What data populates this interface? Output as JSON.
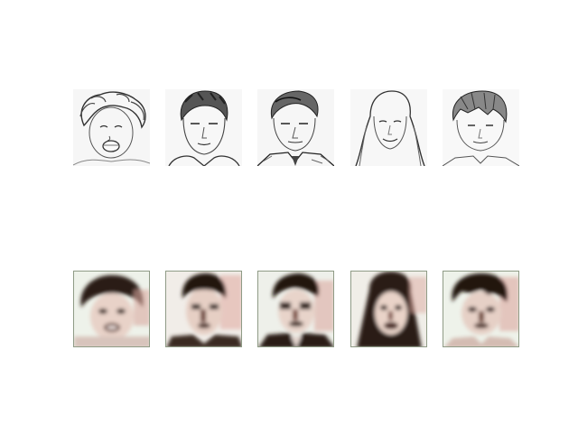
{
  "figure": {
    "rows": [
      {
        "kind": "sketch",
        "tiles": [
          {
            "subject": "woman-curly-hair-open-mouth"
          },
          {
            "subject": "young-man-short-hair"
          },
          {
            "subject": "man-suit-tie"
          },
          {
            "subject": "woman-long-hair-smiling"
          },
          {
            "subject": "boy-bowl-haircut"
          }
        ]
      },
      {
        "kind": "generated",
        "tiles": [
          {
            "subject": "woman-curly-hair-open-mouth"
          },
          {
            "subject": "young-man-short-hair"
          },
          {
            "subject": "man-suit-tie"
          },
          {
            "subject": "woman-long-hair-smiling"
          },
          {
            "subject": "boy-bowl-haircut"
          }
        ]
      }
    ],
    "colors": {
      "sketch_line": "#333333",
      "generated_dark": "#2a1a14",
      "generated_skin": "#e8d2c8",
      "generated_bg": "#eef2ea",
      "generated_tint": "#c98a80"
    }
  }
}
